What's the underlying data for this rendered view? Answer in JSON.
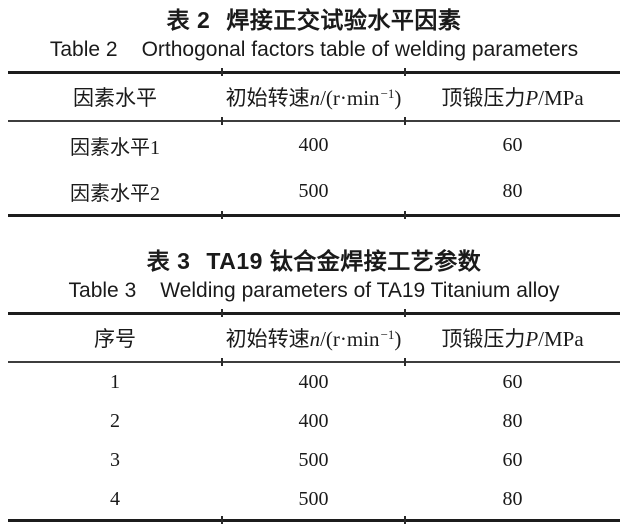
{
  "tables": [
    {
      "title_cn_label": "表 2",
      "title_cn_text": "焊接正交试验水平因素",
      "title_en_label": "Table 2",
      "title_en_text": "Orthogonal factors table of welding parameters",
      "header": {
        "col1": "因素水平",
        "col2": {
          "prefix": "初始转速",
          "symbol": "n",
          "mid": "/(r·min",
          "sup": "−1",
          "post": ")"
        },
        "col3": {
          "prefix": "顶锻压力",
          "symbol": "P",
          "post": "/MPa"
        }
      },
      "rows": [
        [
          "因素水平1",
          "400",
          "60"
        ],
        [
          "因素水平2",
          "500",
          "80"
        ]
      ]
    },
    {
      "title_cn_label": "表 3",
      "title_cn_text": "TA19 钛合金焊接工艺参数",
      "title_en_label": "Table 3",
      "title_en_text": "Welding parameters of TA19 Titanium alloy",
      "header": {
        "col1": "序号",
        "col2": {
          "prefix": "初始转速",
          "symbol": "n",
          "mid": "/(r·min",
          "sup": "−1",
          "post": ")"
        },
        "col3": {
          "prefix": "顶锻压力",
          "symbol": "P",
          "post": "/MPa"
        }
      },
      "rows": [
        [
          "1",
          "400",
          "60"
        ],
        [
          "2",
          "400",
          "80"
        ],
        [
          "3",
          "500",
          "60"
        ],
        [
          "4",
          "500",
          "80"
        ]
      ]
    }
  ]
}
